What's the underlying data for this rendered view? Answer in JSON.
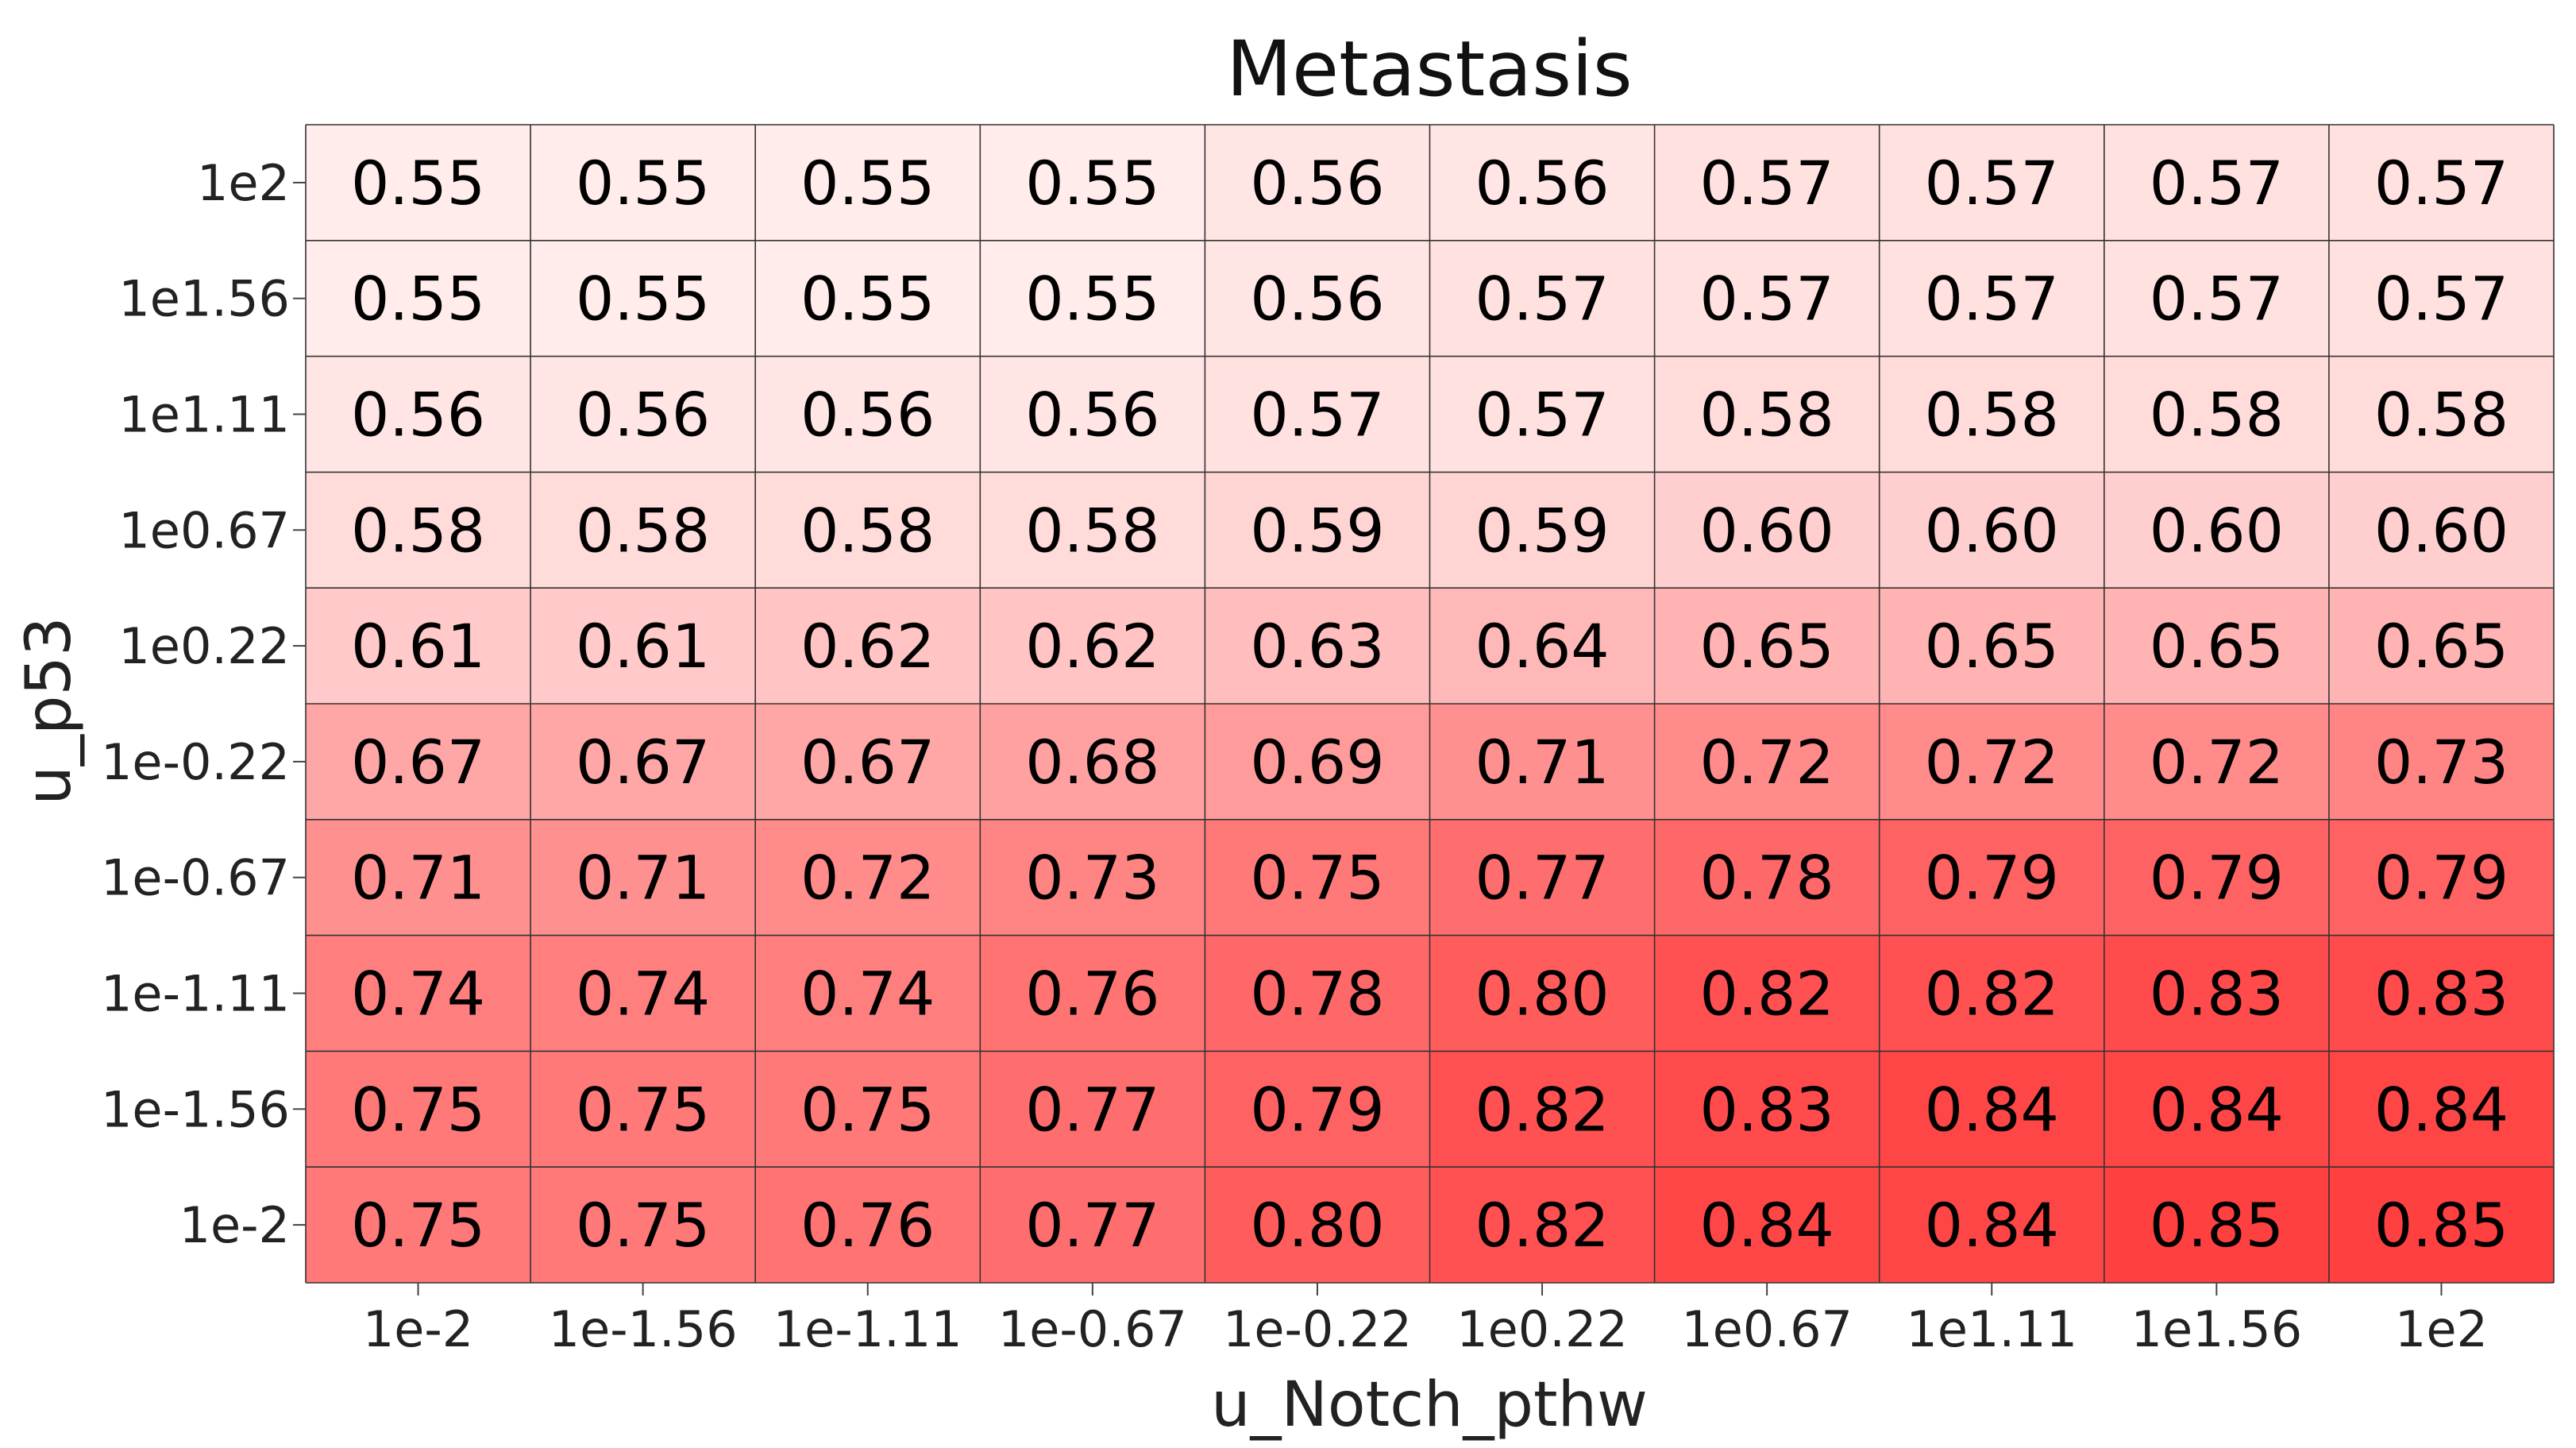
{
  "chart_data": {
    "type": "heatmap",
    "title": "Metastasis",
    "xlabel": "u_Notch_pthw",
    "ylabel": "u_p53",
    "x_categories": [
      "1e-2",
      "1e-1.56",
      "1e-1.11",
      "1e-0.67",
      "1e-0.22",
      "1e0.22",
      "1e0.67",
      "1e1.11",
      "1e1.56",
      "1e2"
    ],
    "y_categories": [
      "1e2",
      "1e1.56",
      "1e1.11",
      "1e0.67",
      "1e0.22",
      "1e-0.22",
      "1e-0.67",
      "1e-1.11",
      "1e-1.56",
      "1e-2"
    ],
    "values": [
      [
        "0.55",
        "0.55",
        "0.55",
        "0.55",
        "0.56",
        "0.56",
        "0.57",
        "0.57",
        "0.57",
        "0.57"
      ],
      [
        "0.55",
        "0.55",
        "0.55",
        "0.55",
        "0.56",
        "0.57",
        "0.57",
        "0.57",
        "0.57",
        "0.57"
      ],
      [
        "0.56",
        "0.56",
        "0.56",
        "0.56",
        "0.57",
        "0.57",
        "0.58",
        "0.58",
        "0.58",
        "0.58"
      ],
      [
        "0.58",
        "0.58",
        "0.58",
        "0.58",
        "0.59",
        "0.59",
        "0.60",
        "0.60",
        "0.60",
        "0.60"
      ],
      [
        "0.61",
        "0.61",
        "0.62",
        "0.62",
        "0.63",
        "0.64",
        "0.65",
        "0.65",
        "0.65",
        "0.65"
      ],
      [
        "0.67",
        "0.67",
        "0.67",
        "0.68",
        "0.69",
        "0.71",
        "0.72",
        "0.72",
        "0.72",
        "0.73"
      ],
      [
        "0.71",
        "0.71",
        "0.72",
        "0.73",
        "0.75",
        "0.77",
        "0.78",
        "0.79",
        "0.79",
        "0.79"
      ],
      [
        "0.74",
        "0.74",
        "0.74",
        "0.76",
        "0.78",
        "0.80",
        "0.82",
        "0.82",
        "0.83",
        "0.83"
      ],
      [
        "0.75",
        "0.75",
        "0.75",
        "0.77",
        "0.79",
        "0.82",
        "0.83",
        "0.84",
        "0.84",
        "0.84"
      ],
      [
        "0.75",
        "0.75",
        "0.76",
        "0.77",
        "0.80",
        "0.82",
        "0.84",
        "0.84",
        "0.85",
        "0.85"
      ]
    ],
    "color_low": "#ffeceb",
    "color_high": "#ff4040",
    "value_range": [
      0.55,
      0.85
    ],
    "grid": true
  }
}
